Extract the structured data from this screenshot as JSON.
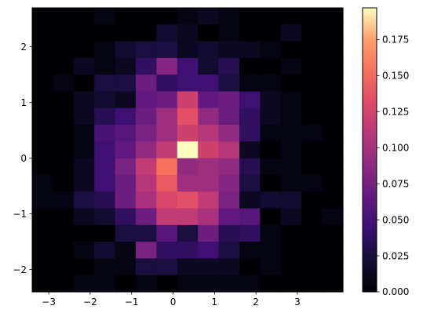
{
  "chart_data": {
    "type": "heatmap",
    "title": "",
    "xlabel": "",
    "ylabel": "",
    "colormap": "magma",
    "x_edges": [
      -3.4,
      -2.9,
      -2.4,
      -1.9,
      -1.4,
      -0.9,
      -0.4,
      0.1,
      0.6,
      1.1,
      1.6,
      2.1,
      2.6,
      3.1,
      3.6,
      4.1
    ],
    "y_edges": [
      -2.4,
      -2.1,
      -1.8,
      -1.5,
      -1.2,
      -0.9,
      -0.6,
      -0.3,
      0.0,
      0.3,
      0.6,
      0.9,
      1.2,
      1.5,
      1.8,
      2.1,
      2.4,
      2.7
    ],
    "x_ticks": [
      -3,
      -2,
      -1,
      0,
      1,
      2,
      3
    ],
    "x_tick_labels": [
      "−3",
      "−2",
      "−1",
      "0",
      "1",
      "2",
      "3"
    ],
    "y_ticks": [
      -2,
      -1,
      0,
      1,
      2
    ],
    "y_tick_labels": [
      "−2",
      "−1",
      "0",
      "1",
      "2"
    ],
    "colorbar": {
      "min": 0.0,
      "max": 0.197,
      "ticks": [
        0.0,
        0.025,
        0.05,
        0.075,
        0.1,
        0.125,
        0.15,
        0.175
      ],
      "tick_labels": [
        "0.000",
        "0.025",
        "0.050",
        "0.075",
        "0.100",
        "0.125",
        "0.150",
        "0.175"
      ]
    },
    "values_top_to_bottom": [
      [
        0.0,
        0.0,
        0.0,
        0.006,
        0.0,
        0.0,
        0.0,
        0.006,
        0.013,
        0.006,
        0.0,
        0.0,
        0.0,
        0.0,
        0.0
      ],
      [
        0.0,
        0.0,
        0.0,
        0.0,
        0.0,
        0.0,
        0.019,
        0.013,
        0.0,
        0.006,
        0.0,
        0.0,
        0.013,
        0.0,
        0.0
      ],
      [
        0.0,
        0.0,
        0.0,
        0.006,
        0.019,
        0.026,
        0.026,
        0.013,
        0.019,
        0.013,
        0.013,
        0.006,
        0.0,
        0.0,
        0.0
      ],
      [
        0.0,
        0.0,
        0.013,
        0.006,
        0.013,
        0.038,
        0.083,
        0.045,
        0.019,
        0.032,
        0.0,
        0.0,
        0.006,
        0.0,
        0.0
      ],
      [
        0.0,
        0.006,
        0.0,
        0.026,
        0.026,
        0.07,
        0.038,
        0.045,
        0.045,
        0.026,
        0.006,
        0.006,
        0.0,
        0.0,
        0.0
      ],
      [
        0.0,
        0.0,
        0.013,
        0.019,
        0.013,
        0.064,
        0.07,
        0.122,
        0.064,
        0.07,
        0.045,
        0.013,
        0.006,
        0.0,
        0.0
      ],
      [
        0.0,
        0.0,
        0.013,
        0.032,
        0.045,
        0.07,
        0.096,
        0.135,
        0.09,
        0.07,
        0.038,
        0.013,
        0.006,
        0.0,
        0.0
      ],
      [
        0.0,
        0.0,
        0.006,
        0.051,
        0.058,
        0.077,
        0.096,
        0.122,
        0.109,
        0.09,
        0.038,
        0.006,
        0.006,
        0.006,
        0.0
      ],
      [
        0.0,
        0.0,
        0.006,
        0.045,
        0.064,
        0.09,
        0.115,
        0.197,
        0.122,
        0.109,
        0.013,
        0.0,
        0.006,
        0.0,
        0.0
      ],
      [
        0.0,
        0.0,
        0.013,
        0.045,
        0.077,
        0.115,
        0.154,
        0.09,
        0.096,
        0.09,
        0.032,
        0.006,
        0.006,
        0.0,
        0.0
      ],
      [
        0.006,
        0.0,
        0.013,
        0.045,
        0.07,
        0.109,
        0.141,
        0.096,
        0.096,
        0.083,
        0.026,
        0.0,
        0.006,
        0.006,
        0.0
      ],
      [
        0.006,
        0.006,
        0.026,
        0.032,
        0.07,
        0.102,
        0.128,
        0.135,
        0.115,
        0.077,
        0.013,
        0.019,
        0.019,
        0.0,
        0.0
      ],
      [
        0.0,
        0.0,
        0.013,
        0.019,
        0.038,
        0.07,
        0.115,
        0.115,
        0.102,
        0.064,
        0.058,
        0.0,
        0.013,
        0.0,
        0.006
      ],
      [
        0.0,
        0.0,
        0.0,
        0.0,
        0.026,
        0.026,
        0.058,
        0.026,
        0.07,
        0.032,
        0.038,
        0.006,
        0.0,
        0.0,
        0.0
      ],
      [
        0.0,
        0.0,
        0.006,
        0.019,
        0.006,
        0.077,
        0.038,
        0.038,
        0.045,
        0.026,
        0.006,
        0.006,
        0.0,
        0.0,
        0.0
      ],
      [
        0.0,
        0.0,
        0.0,
        0.006,
        0.006,
        0.026,
        0.026,
        0.013,
        0.013,
        0.013,
        0.0,
        0.006,
        0.0,
        0.0,
        0.0
      ],
      [
        0.0,
        0.0,
        0.006,
        0.006,
        0.0,
        0.006,
        0.0,
        0.006,
        0.006,
        0.006,
        0.006,
        0.0,
        0.0,
        0.0,
        0.0
      ]
    ]
  }
}
